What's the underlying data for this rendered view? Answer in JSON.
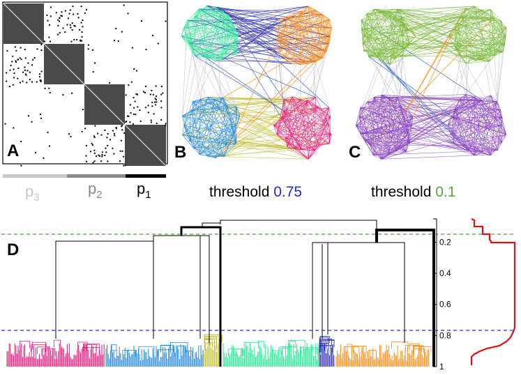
{
  "panels": {
    "a": {
      "letter": "A"
    },
    "b": {
      "letter": "B"
    },
    "c": {
      "letter": "C"
    },
    "d": {
      "letter": "D"
    }
  },
  "scale_bar": {
    "items": [
      {
        "base": "p",
        "sub": "3",
        "color": "#c8c8c8"
      },
      {
        "base": "p",
        "sub": "2",
        "color": "#8a8a8a"
      },
      {
        "base": "p",
        "sub": "1",
        "color": "#000000"
      }
    ]
  },
  "thresholds": {
    "b": {
      "prefix": "threshold ",
      "value": "0.75",
      "color": "#2a2ad0"
    },
    "c": {
      "prefix": "threshold ",
      "value": "0.1",
      "color": "#5aa832"
    }
  },
  "colors": {
    "pink": "#f0147a",
    "blue": "#1e88e5",
    "olive": "#c2c030",
    "mint": "#22e890",
    "navy": "#2a2ab0",
    "orange": "#ff8a10",
    "green": "#7ab83a",
    "purple": "#8a44c0"
  },
  "axis": {
    "ticks": [
      {
        "label": "0.2",
        "value": 0.2
      },
      {
        "label": "0.4",
        "value": 0.4
      },
      {
        "label": "0.6",
        "value": 0.6
      },
      {
        "label": "0.8",
        "value": 0.8
      },
      {
        "label": "1",
        "value": 1.0
      }
    ]
  }
}
